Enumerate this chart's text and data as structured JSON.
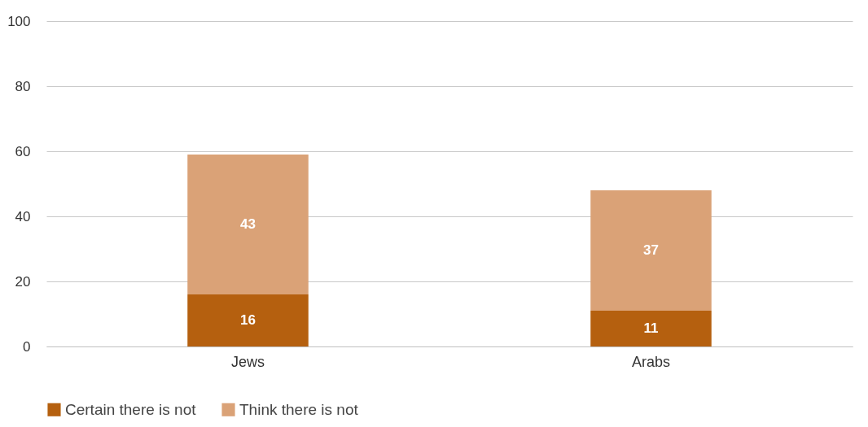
{
  "chart_data": {
    "type": "bar",
    "stacked": true,
    "categories": [
      "Jews",
      "Arabs"
    ],
    "series": [
      {
        "name": "Certain there is not",
        "color": "#b5600f",
        "values": [
          16,
          11
        ]
      },
      {
        "name": "Think there is not",
        "color": "#daa277",
        "values": [
          43,
          37
        ]
      }
    ],
    "ylim": [
      0,
      100
    ],
    "yticks": [
      0,
      20,
      40,
      60,
      80,
      100
    ],
    "grid": "y",
    "legend": "bottom",
    "data_labels": true
  }
}
